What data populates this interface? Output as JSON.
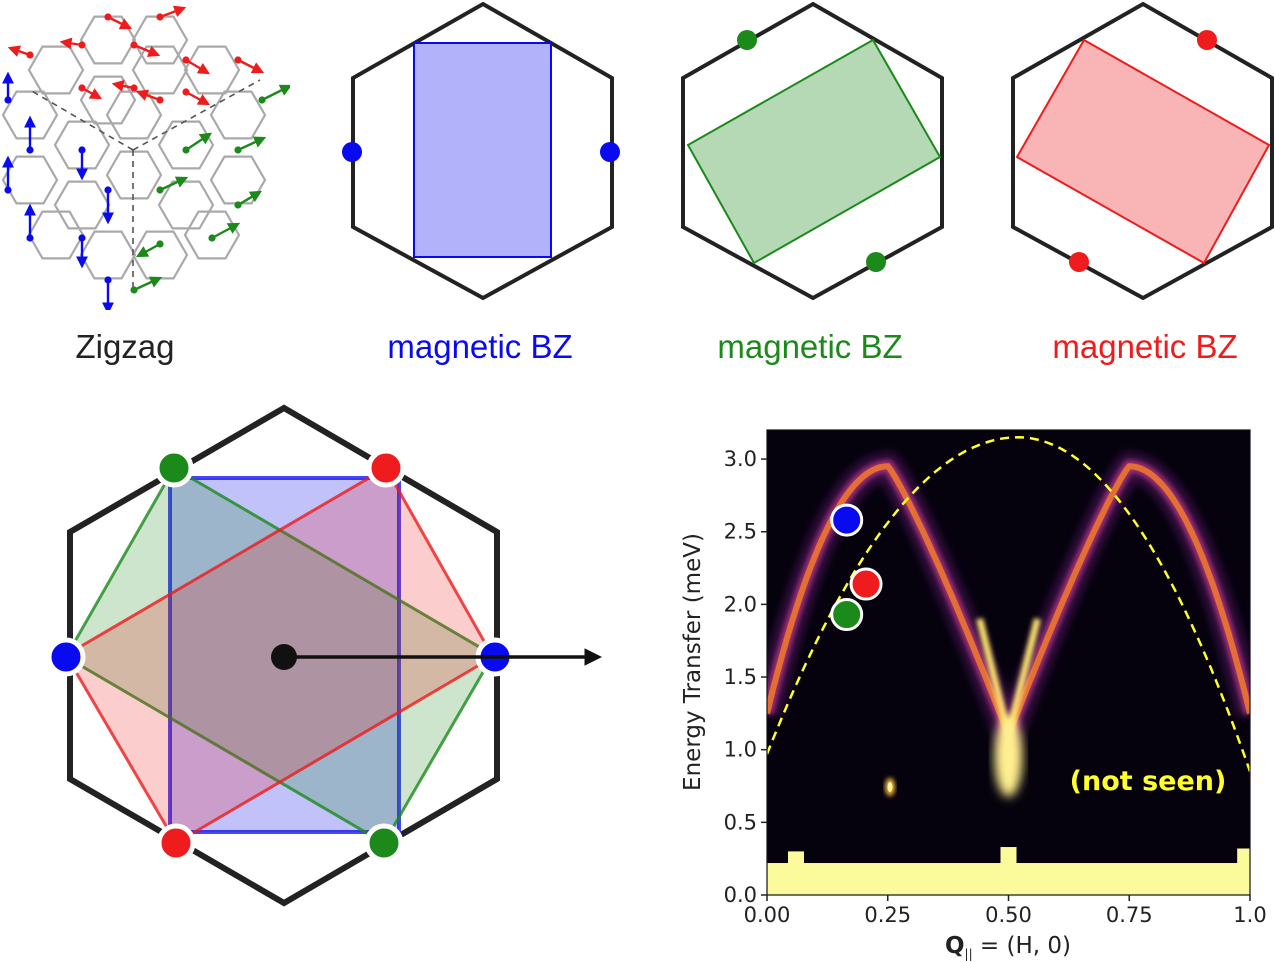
{
  "colors": {
    "blue": "#0a0af0",
    "green": "#1b8a1b",
    "red": "#ee1c1c",
    "black": "#222222",
    "lattice": "#a9a9a9",
    "yellow_label": "#ffff2e"
  },
  "captions": {
    "zigzag": "Zigzag",
    "magnetic_bz_blue": "magnetic BZ",
    "magnetic_bz_green": "magnetic BZ",
    "magnetic_bz_red": "magnetic BZ"
  },
  "chart_data": {
    "type": "heatmap",
    "xlabel_bold": "Q",
    "xlabel_sub": "||",
    "xlabel_rest": " = (H, 0)",
    "ylabel": "Energy Transfer (meV)",
    "xlim": [
      0.0,
      1.0
    ],
    "ylim": [
      0.0,
      3.2
    ],
    "x_ticks": [
      "0.00",
      "0.25",
      "0.50",
      "0.75",
      "1.0"
    ],
    "y_ticks": [
      "0.0",
      "0.5",
      "1.0",
      "1.5",
      "2.0",
      "2.5",
      "3.0"
    ],
    "annotation": "(not seen)",
    "markers": [
      {
        "color": "blue",
        "x": 0.165,
        "y": 2.58
      },
      {
        "color": "red",
        "x": 0.205,
        "y": 2.14
      },
      {
        "color": "green",
        "x": 0.165,
        "y": 1.93
      }
    ],
    "dashed_curve": {
      "x_peak": 0.52,
      "y_peak": 3.15,
      "y_at_0": 0.97,
      "y_at_1": 0.85
    },
    "dispersion": {
      "min_x": 0.5,
      "min_y": 1.1,
      "peaks": [
        [
          0.25,
          2.95
        ],
        [
          0.75,
          2.95
        ]
      ]
    }
  }
}
